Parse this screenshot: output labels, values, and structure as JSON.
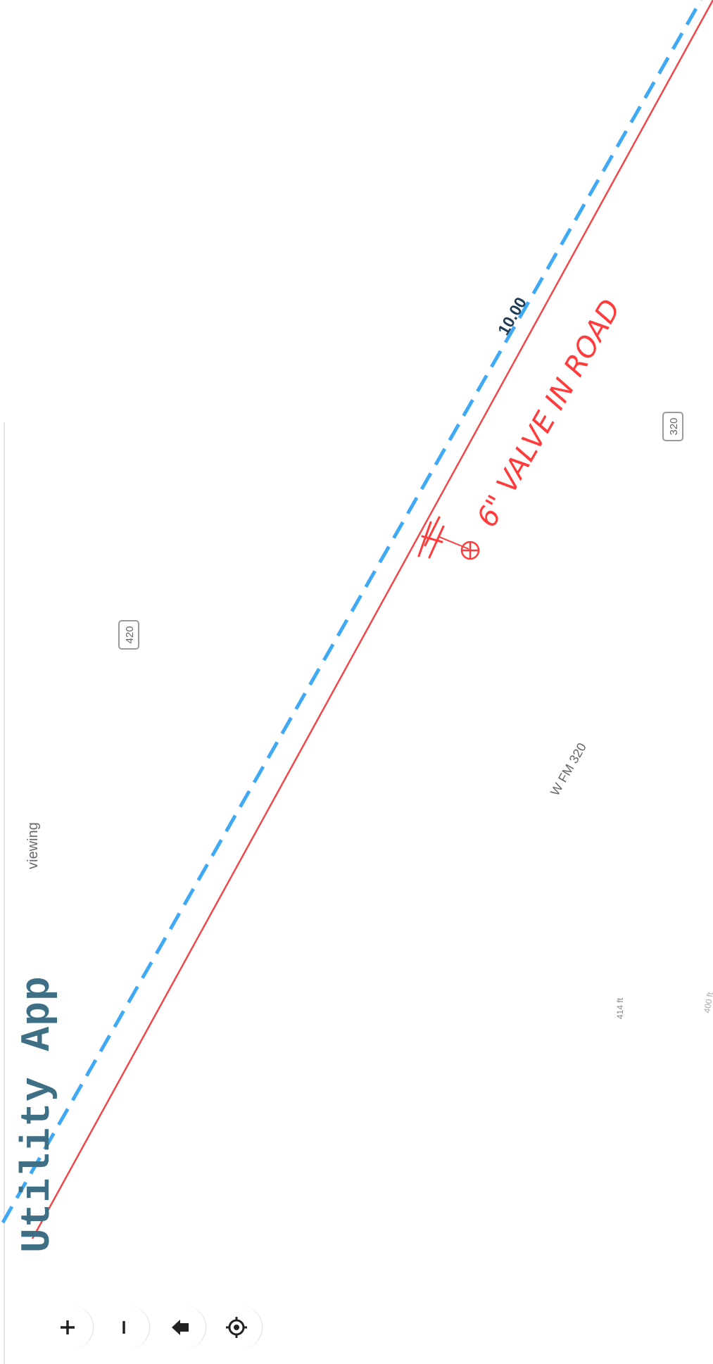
{
  "app": {
    "title": "Utility App",
    "mode": "viewing"
  },
  "map_labels": {
    "road_name": "W FM 320",
    "shield_north": "420",
    "shield_south": "320",
    "distance_label": "10.00",
    "elev_a": "414 ft",
    "elev_b": "400 ft"
  },
  "annotation": {
    "text": "6\" VALVE IN ROAD",
    "color": "#ff3b3b"
  },
  "lines": {
    "water_main_color": "#f0484a",
    "offset_line_color": "#3fa9f5"
  },
  "controls": [
    {
      "name": "zoom-in-button",
      "icon": "plus-icon"
    },
    {
      "name": "zoom-out-button",
      "icon": "minus-icon"
    },
    {
      "name": "home-button",
      "icon": "home-icon"
    },
    {
      "name": "locate-button",
      "icon": "locate-icon"
    }
  ]
}
